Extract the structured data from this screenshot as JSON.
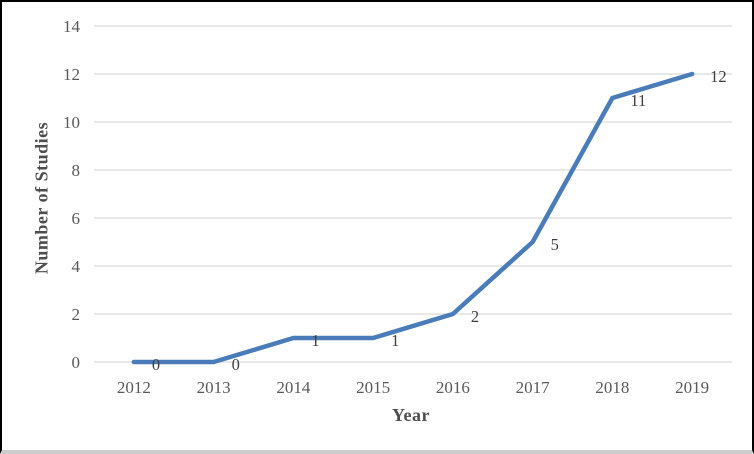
{
  "chart_data": {
    "type": "line",
    "title": "",
    "xlabel": "Year",
    "ylabel": "Number of Studies",
    "categories": [
      "2012",
      "2013",
      "2014",
      "2015",
      "2016",
      "2017",
      "2018",
      "2019"
    ],
    "series": [
      {
        "name": "Number of Studies",
        "values": [
          0,
          0,
          1,
          1,
          2,
          5,
          11,
          12
        ]
      }
    ],
    "ylim": [
      0,
      14
    ],
    "ytick_step": 2,
    "grid": "horizontal",
    "data_labels": true,
    "legend": "none",
    "colors": {
      "line": "#4a7cba",
      "gridline": "#d9d9d9",
      "tick_label": "#595959",
      "data_label": "#3f3f3f",
      "axis_title": "#4d4d4d",
      "frame_border": "#000000"
    }
  }
}
